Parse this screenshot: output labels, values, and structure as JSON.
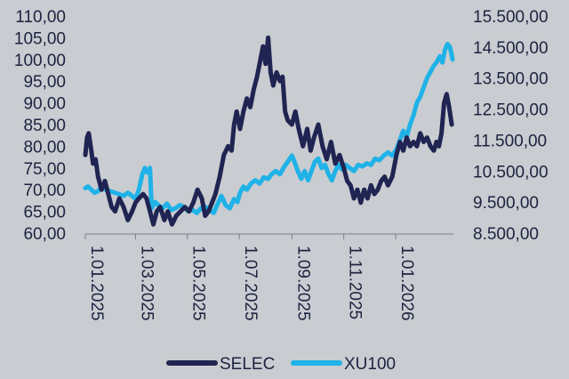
{
  "chart_data": {
    "type": "line",
    "x_axis": {
      "tick_labels": [
        "1.01.2025",
        "1.03.2025",
        "1.05.2025",
        "1.07.2025",
        "1.09.2025",
        "1.11.2025",
        "1.01.2026"
      ],
      "range": [
        "2025-01-01",
        "2026-03-10"
      ]
    },
    "y_left": {
      "tick_labels": [
        "60,00",
        "65,00",
        "70,00",
        "75,00",
        "80,00",
        "85,00",
        "90,00",
        "95,00",
        "100,00",
        "105,00",
        "110,00"
      ],
      "ylim": [
        60,
        110
      ]
    },
    "y_right": {
      "tick_labels": [
        "8.500,00",
        "9.500,00",
        "10.500,00",
        "11.500,00",
        "12.500,00",
        "13.500,00",
        "14.500,00",
        "15.500,00"
      ],
      "ylim": [
        8500,
        15500
      ]
    },
    "series": [
      {
        "name": "SELEC",
        "axis": "left",
        "color": "#1f2452",
        "points": [
          [
            "2025-01-01",
            78
          ],
          [
            "2025-01-03",
            82
          ],
          [
            "2025-01-05",
            83
          ],
          [
            "2025-01-08",
            79
          ],
          [
            "2025-01-10",
            76
          ],
          [
            "2025-01-13",
            77
          ],
          [
            "2025-01-16",
            73
          ],
          [
            "2025-01-20",
            70
          ],
          [
            "2025-01-24",
            72
          ],
          [
            "2025-01-28",
            69
          ],
          [
            "2025-02-01",
            66
          ],
          [
            "2025-02-05",
            65
          ],
          [
            "2025-02-10",
            68
          ],
          [
            "2025-02-15",
            66
          ],
          [
            "2025-02-20",
            63
          ],
          [
            "2025-02-25",
            65
          ],
          [
            "2025-03-01",
            67
          ],
          [
            "2025-03-05",
            68
          ],
          [
            "2025-03-10",
            69
          ],
          [
            "2025-03-14",
            68
          ],
          [
            "2025-03-18",
            65
          ],
          [
            "2025-03-22",
            62
          ],
          [
            "2025-03-26",
            65
          ],
          [
            "2025-03-30",
            66
          ],
          [
            "2025-04-04",
            63
          ],
          [
            "2025-04-08",
            65
          ],
          [
            "2025-04-13",
            62
          ],
          [
            "2025-04-18",
            64
          ],
          [
            "2025-04-23",
            65
          ],
          [
            "2025-04-28",
            66
          ],
          [
            "2025-05-03",
            65
          ],
          [
            "2025-05-08",
            67
          ],
          [
            "2025-05-13",
            70
          ],
          [
            "2025-05-18",
            68
          ],
          [
            "2025-05-22",
            64
          ],
          [
            "2025-05-26",
            65
          ],
          [
            "2025-05-30",
            67
          ],
          [
            "2025-06-03",
            69
          ],
          [
            "2025-06-08",
            73
          ],
          [
            "2025-06-13",
            78
          ],
          [
            "2025-06-18",
            80
          ],
          [
            "2025-06-22",
            79
          ],
          [
            "2025-06-25",
            85
          ],
          [
            "2025-06-28",
            88
          ],
          [
            "2025-07-02",
            84
          ],
          [
            "2025-07-06",
            88
          ],
          [
            "2025-07-10",
            91
          ],
          [
            "2025-07-14",
            89
          ],
          [
            "2025-07-18",
            93
          ],
          [
            "2025-07-22",
            96
          ],
          [
            "2025-07-26",
            100
          ],
          [
            "2025-07-29",
            103
          ],
          [
            "2025-08-01",
            99
          ],
          [
            "2025-08-04",
            105
          ],
          [
            "2025-08-07",
            97
          ],
          [
            "2025-08-10",
            94
          ],
          [
            "2025-08-14",
            97
          ],
          [
            "2025-08-18",
            95
          ],
          [
            "2025-08-21",
            96
          ],
          [
            "2025-08-24",
            88
          ],
          [
            "2025-08-27",
            86
          ],
          [
            "2025-09-01",
            85
          ],
          [
            "2025-09-05",
            88
          ],
          [
            "2025-09-09",
            84
          ],
          [
            "2025-09-14",
            80
          ],
          [
            "2025-09-19",
            84
          ],
          [
            "2025-09-23",
            79
          ],
          [
            "2025-09-27",
            82
          ],
          [
            "2025-10-02",
            85
          ],
          [
            "2025-10-07",
            80
          ],
          [
            "2025-10-12",
            77
          ],
          [
            "2025-10-17",
            81
          ],
          [
            "2025-10-22",
            76
          ],
          [
            "2025-10-27",
            78
          ],
          [
            "2025-11-01",
            75
          ],
          [
            "2025-11-05",
            72
          ],
          [
            "2025-11-09",
            71
          ],
          [
            "2025-11-13",
            68
          ],
          [
            "2025-11-17",
            70
          ],
          [
            "2025-11-21",
            67
          ],
          [
            "2025-11-25",
            70
          ],
          [
            "2025-11-29",
            68
          ],
          [
            "2025-12-03",
            71
          ],
          [
            "2025-12-07",
            69
          ],
          [
            "2025-12-11",
            70
          ],
          [
            "2025-12-15",
            72
          ],
          [
            "2025-12-19",
            73
          ],
          [
            "2025-12-23",
            71
          ],
          [
            "2025-12-28",
            73
          ],
          [
            "2026-01-02",
            78
          ],
          [
            "2026-01-06",
            81
          ],
          [
            "2026-01-10",
            79
          ],
          [
            "2026-01-14",
            82
          ],
          [
            "2026-01-18",
            80
          ],
          [
            "2026-01-22",
            81
          ],
          [
            "2026-01-26",
            80
          ],
          [
            "2026-01-30",
            83
          ],
          [
            "2026-02-03",
            81
          ],
          [
            "2026-02-07",
            82
          ],
          [
            "2026-02-11",
            80
          ],
          [
            "2026-02-15",
            79
          ],
          [
            "2026-02-18",
            81
          ],
          [
            "2026-02-21",
            80
          ],
          [
            "2026-02-24",
            83
          ],
          [
            "2026-02-27",
            90
          ],
          [
            "2026-03-02",
            92
          ],
          [
            "2026-03-05",
            89
          ],
          [
            "2026-03-08",
            85
          ]
        ]
      },
      {
        "name": "XU100",
        "axis": "right",
        "color": "#1fb2e8",
        "points": [
          [
            "2025-01-01",
            9950
          ],
          [
            "2025-01-04",
            10000
          ],
          [
            "2025-01-08",
            9900
          ],
          [
            "2025-01-12",
            9800
          ],
          [
            "2025-01-16",
            9850
          ],
          [
            "2025-01-20",
            10000
          ],
          [
            "2025-01-25",
            9900
          ],
          [
            "2025-01-30",
            9850
          ],
          [
            "2025-02-05",
            9800
          ],
          [
            "2025-02-10",
            9750
          ],
          [
            "2025-02-15",
            9700
          ],
          [
            "2025-02-20",
            9800
          ],
          [
            "2025-02-25",
            9700
          ],
          [
            "2025-03-01",
            9600
          ],
          [
            "2025-03-05",
            9900
          ],
          [
            "2025-03-09",
            10400
          ],
          [
            "2025-03-12",
            10600
          ],
          [
            "2025-03-15",
            10450
          ],
          [
            "2025-03-18",
            10600
          ],
          [
            "2025-03-20",
            9300
          ],
          [
            "2025-03-24",
            9500
          ],
          [
            "2025-03-28",
            9400
          ],
          [
            "2025-04-02",
            9300
          ],
          [
            "2025-04-07",
            9450
          ],
          [
            "2025-04-12",
            9250
          ],
          [
            "2025-04-17",
            9300
          ],
          [
            "2025-04-22",
            9400
          ],
          [
            "2025-04-27",
            9350
          ],
          [
            "2025-05-02",
            9200
          ],
          [
            "2025-05-07",
            9250
          ],
          [
            "2025-05-12",
            9150
          ],
          [
            "2025-05-17",
            9300
          ],
          [
            "2025-05-22",
            9350
          ],
          [
            "2025-05-27",
            9250
          ],
          [
            "2025-06-01",
            9150
          ],
          [
            "2025-06-05",
            9400
          ],
          [
            "2025-06-10",
            9700
          ],
          [
            "2025-06-15",
            9400
          ],
          [
            "2025-06-20",
            9300
          ],
          [
            "2025-06-25",
            9600
          ],
          [
            "2025-06-29",
            9500
          ],
          [
            "2025-07-02",
            9800
          ],
          [
            "2025-07-06",
            10000
          ],
          [
            "2025-07-10",
            9900
          ],
          [
            "2025-07-15",
            10100
          ],
          [
            "2025-07-20",
            10200
          ],
          [
            "2025-07-25",
            10100
          ],
          [
            "2025-07-30",
            10300
          ],
          [
            "2025-08-04",
            10250
          ],
          [
            "2025-08-08",
            10400
          ],
          [
            "2025-08-13",
            10500
          ],
          [
            "2025-08-18",
            10400
          ],
          [
            "2025-08-22",
            10600
          ],
          [
            "2025-08-27",
            10800
          ],
          [
            "2025-09-01",
            11000
          ],
          [
            "2025-09-04",
            10800
          ],
          [
            "2025-09-08",
            10500
          ],
          [
            "2025-09-12",
            10250
          ],
          [
            "2025-09-16",
            10500
          ],
          [
            "2025-09-20",
            10200
          ],
          [
            "2025-09-24",
            10500
          ],
          [
            "2025-09-28",
            10800
          ],
          [
            "2025-10-02",
            10900
          ],
          [
            "2025-10-06",
            10600
          ],
          [
            "2025-10-10",
            10700
          ],
          [
            "2025-10-14",
            10400
          ],
          [
            "2025-10-18",
            10200
          ],
          [
            "2025-10-22",
            10500
          ],
          [
            "2025-10-26",
            10700
          ],
          [
            "2025-10-30",
            10550
          ],
          [
            "2025-11-03",
            10700
          ],
          [
            "2025-11-08",
            10600
          ],
          [
            "2025-11-13",
            10500
          ],
          [
            "2025-11-18",
            10700
          ],
          [
            "2025-11-23",
            10650
          ],
          [
            "2025-11-28",
            10750
          ],
          [
            "2025-12-03",
            10700
          ],
          [
            "2025-12-08",
            10900
          ],
          [
            "2025-12-13",
            10850
          ],
          [
            "2025-12-18",
            11000
          ],
          [
            "2025-12-23",
            11100
          ],
          [
            "2025-12-28",
            11000
          ],
          [
            "2026-01-02",
            11200
          ],
          [
            "2026-01-06",
            11500
          ],
          [
            "2026-01-10",
            11800
          ],
          [
            "2026-01-14",
            11600
          ],
          [
            "2026-01-18",
            12000
          ],
          [
            "2026-01-22",
            12300
          ],
          [
            "2026-01-26",
            12700
          ],
          [
            "2026-01-30",
            12900
          ],
          [
            "2026-02-03",
            13200
          ],
          [
            "2026-02-07",
            13500
          ],
          [
            "2026-02-11",
            13700
          ],
          [
            "2026-02-15",
            13900
          ],
          [
            "2026-02-18",
            14000
          ],
          [
            "2026-02-22",
            14200
          ],
          [
            "2026-02-25",
            14000
          ],
          [
            "2026-02-28",
            14400
          ],
          [
            "2026-03-03",
            14600
          ],
          [
            "2026-03-06",
            14500
          ],
          [
            "2026-03-09",
            14100
          ]
        ]
      }
    ],
    "legend": {
      "placement": "bottom-center",
      "entries": [
        "SELEC",
        "XU100"
      ]
    },
    "grid": false
  },
  "colors": {
    "background": "#c9ccd0",
    "text": "#1d2340",
    "axis": "#7a7f88"
  }
}
